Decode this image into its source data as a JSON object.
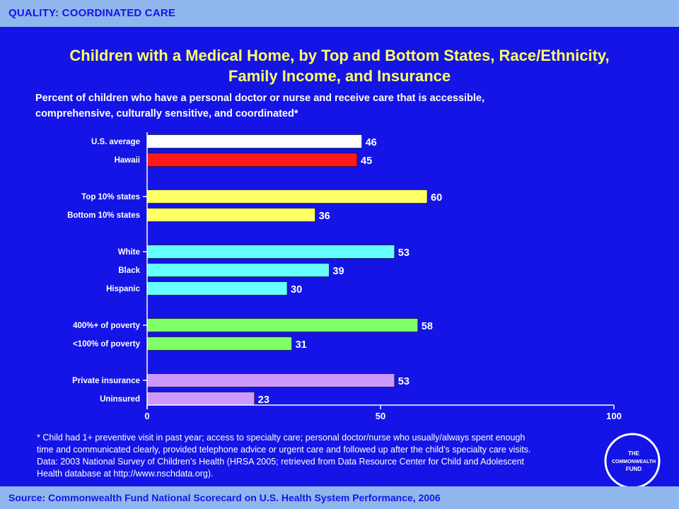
{
  "header": {
    "section_label": "QUALITY: COORDINATED CARE"
  },
  "title": {
    "line1": "Children with a Medical Home, by Top and Bottom States, Race/Ethnicity,",
    "line2": "Family Income, and Insurance"
  },
  "subtitle": {
    "line1": "Percent of children who have a personal doctor or nurse and receive care that is accessible,",
    "line2": "comprehensive, culturally sensitive, and coordinated*"
  },
  "chart_data": {
    "type": "bar",
    "orientation": "horizontal",
    "xlim": [
      0,
      100
    ],
    "x_ticks": [
      0,
      50,
      100
    ],
    "grid": false,
    "legend": "none",
    "groups": [
      {
        "items": [
          {
            "label": "U.S. average",
            "value": 46,
            "color": "#ffffff"
          },
          {
            "label": "Hawaii",
            "value": 45,
            "color": "#ff1a1a"
          }
        ]
      },
      {
        "items": [
          {
            "label": "Top 10% states",
            "value": 60,
            "color": "#ffff66"
          },
          {
            "label": "Bottom 10% states",
            "value": 36,
            "color": "#ffff66"
          }
        ]
      },
      {
        "items": [
          {
            "label": "White",
            "value": 53,
            "color": "#66ffff"
          },
          {
            "label": "Black",
            "value": 39,
            "color": "#66ffff"
          },
          {
            "label": "Hispanic",
            "value": 30,
            "color": "#66ffff"
          }
        ]
      },
      {
        "items": [
          {
            "label": "400%+ of poverty",
            "value": 58,
            "color": "#80ff66"
          },
          {
            "label": "<100% of poverty",
            "value": 31,
            "color": "#80ff66"
          }
        ]
      },
      {
        "items": [
          {
            "label": "Private insurance",
            "value": 53,
            "color": "#cc99ff"
          },
          {
            "label": "Uninsured",
            "value": 23,
            "color": "#cc99ff"
          }
        ]
      }
    ]
  },
  "footnote": {
    "line1": "* Child had 1+ preventive visit in past year; access to specialty care; personal doctor/nurse who usually/always spent enough",
    "line2": "time and communicated clearly, provided telephone advice or urgent care and followed up after the child’s specialty care visits.",
    "line3": "Data: 2003 National Survey of Children’s Health (HRSA 2005; retrieved from Data Resource Center for Child and Adolescent",
    "line4": "Health database at http://www.nschdata.org)."
  },
  "footer": {
    "source": "Source: Commonwealth Fund National Scorecard on U.S. Health System Performance, 2006"
  },
  "logo": {
    "line1": "THE",
    "line2": "COMMONWEALTH",
    "line3": "FUND"
  },
  "colors": {
    "background": "#1414e6",
    "banner": "#8fb7ee",
    "title": "#ffff66"
  }
}
